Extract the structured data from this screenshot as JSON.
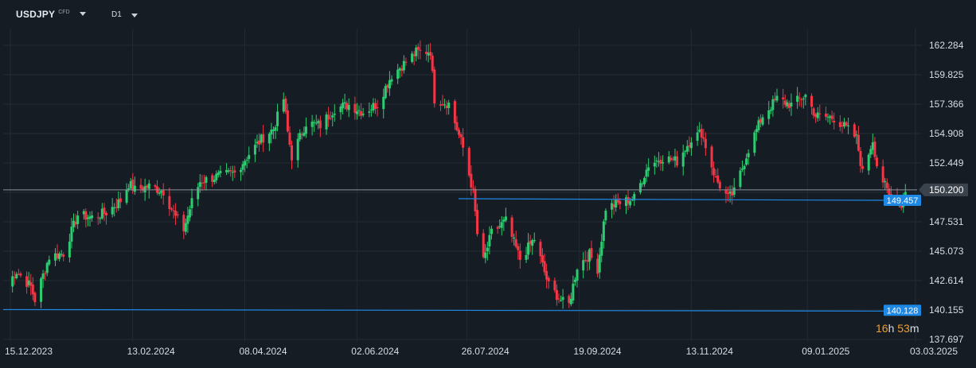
{
  "header": {
    "symbol": "USDJPY",
    "instrument_type": "CFD",
    "timeframe": "D1",
    "icons": [
      "chevron-down-icon",
      "chevron-down-icon"
    ]
  },
  "colors": {
    "background": "#151c24",
    "grid": "#222b35",
    "bullish": "#26a69a",
    "bullish_bright": "#2ecc71",
    "bearish": "#f23645",
    "level_line": "#1e88e5",
    "price_line": "#8a939c",
    "price_tag": "#3a424b",
    "countdown": "#f0a030",
    "axis_text": "#d7dde4"
  },
  "price_tag": {
    "value": "150.200"
  },
  "horizontal_levels": [
    {
      "label": "149.457"
    },
    {
      "label": "140.128"
    }
  ],
  "countdown": {
    "hours": "16",
    "h_unit": "h",
    "minutes": "53",
    "m_unit": "m"
  },
  "chart_data": {
    "type": "candlestick",
    "title": "",
    "xlabel": "",
    "ylabel": "",
    "ylim": [
      137.3,
      163.0
    ],
    "grid": true,
    "y_ticks": [
      "162.284",
      "159.825",
      "157.366",
      "154.908",
      "152.449",
      "149.990",
      "147.531",
      "145.073",
      "142.614",
      "140.155",
      "137.697"
    ],
    "y_tick_values": [
      162.284,
      159.825,
      157.366,
      154.908,
      152.449,
      149.99,
      147.531,
      145.073,
      142.614,
      140.155,
      137.697
    ],
    "x_ticks": [
      "15.12.2023",
      "13.02.2024",
      "08.04.2024",
      "02.06.2024",
      "26.07.2024",
      "19.09.2024",
      "13.11.2024",
      "09.01.2025",
      "03.03.2025"
    ],
    "series": [
      {
        "close_path": [
          [
            "2023-12-15",
            142.2
          ],
          [
            "2023-12-20",
            143.4
          ],
          [
            "2023-12-27",
            142.1
          ],
          [
            "2023-12-29",
            141.0
          ],
          [
            "2024-01-05",
            144.6
          ],
          [
            "2024-01-12",
            144.9
          ],
          [
            "2024-01-19",
            148.1
          ],
          [
            "2024-01-26",
            147.9
          ],
          [
            "2024-02-02",
            148.3
          ],
          [
            "2024-02-09",
            149.3
          ],
          [
            "2024-02-13",
            150.7
          ],
          [
            "2024-02-16",
            150.2
          ],
          [
            "2024-02-23",
            150.5
          ],
          [
            "2024-03-01",
            150.1
          ],
          [
            "2024-03-07",
            147.9
          ],
          [
            "2024-03-11",
            146.9
          ],
          [
            "2024-03-15",
            149.2
          ],
          [
            "2024-03-19",
            150.9
          ],
          [
            "2024-03-27",
            151.3
          ],
          [
            "2024-04-05",
            151.6
          ],
          [
            "2024-04-12",
            153.2
          ],
          [
            "2024-04-19",
            154.6
          ],
          [
            "2024-04-24",
            155.3
          ],
          [
            "2024-04-29",
            157.8
          ],
          [
            "2024-05-01",
            155.0
          ],
          [
            "2024-05-03",
            153.0
          ],
          [
            "2024-05-10",
            155.8
          ],
          [
            "2024-05-17",
            155.6
          ],
          [
            "2024-05-24",
            157.0
          ],
          [
            "2024-05-31",
            157.3
          ],
          [
            "2024-06-07",
            156.7
          ],
          [
            "2024-06-14",
            157.4
          ],
          [
            "2024-06-21",
            159.8
          ],
          [
            "2024-06-28",
            160.9
          ],
          [
            "2024-07-03",
            161.7
          ],
          [
            "2024-07-10",
            161.8
          ],
          [
            "2024-07-12",
            157.8
          ],
          [
            "2024-07-19",
            157.4
          ],
          [
            "2024-07-26",
            153.7
          ],
          [
            "2024-07-31",
            150.0
          ],
          [
            "2024-08-02",
            146.5
          ],
          [
            "2024-08-05",
            144.2
          ],
          [
            "2024-08-09",
            146.6
          ],
          [
            "2024-08-16",
            147.6
          ],
          [
            "2024-08-23",
            144.4
          ],
          [
            "2024-08-30",
            146.1
          ],
          [
            "2024-09-06",
            142.2
          ],
          [
            "2024-09-13",
            140.8
          ],
          [
            "2024-09-16",
            140.6
          ],
          [
            "2024-09-20",
            143.8
          ],
          [
            "2024-09-26",
            144.8
          ],
          [
            "2024-09-30",
            143.6
          ],
          [
            "2024-10-04",
            148.7
          ],
          [
            "2024-10-11",
            149.1
          ],
          [
            "2024-10-18",
            149.5
          ],
          [
            "2024-10-25",
            152.3
          ],
          [
            "2024-11-01",
            152.9
          ],
          [
            "2024-11-08",
            152.6
          ],
          [
            "2024-11-15",
            154.5
          ],
          [
            "2024-11-20",
            155.0
          ],
          [
            "2024-11-27",
            151.1
          ],
          [
            "2024-12-03",
            149.5
          ],
          [
            "2024-12-06",
            150.0
          ],
          [
            "2024-12-13",
            153.6
          ],
          [
            "2024-12-20",
            156.4
          ],
          [
            "2024-12-27",
            157.8
          ],
          [
            "2025-01-03",
            157.3
          ],
          [
            "2025-01-10",
            158.1
          ],
          [
            "2025-01-15",
            156.4
          ],
          [
            "2025-01-24",
            156.2
          ],
          [
            "2025-01-31",
            155.2
          ],
          [
            "2025-02-04",
            154.5
          ],
          [
            "2025-02-07",
            151.6
          ],
          [
            "2025-02-12",
            154.4
          ],
          [
            "2025-02-14",
            152.3
          ],
          [
            "2025-02-20",
            149.6
          ],
          [
            "2025-02-24",
            149.7
          ],
          [
            "2025-02-26",
            149.0
          ],
          [
            "2025-02-28",
            150.2
          ]
        ]
      }
    ],
    "levels": [
      149.457,
      140.128
    ],
    "last_price": 150.2
  }
}
